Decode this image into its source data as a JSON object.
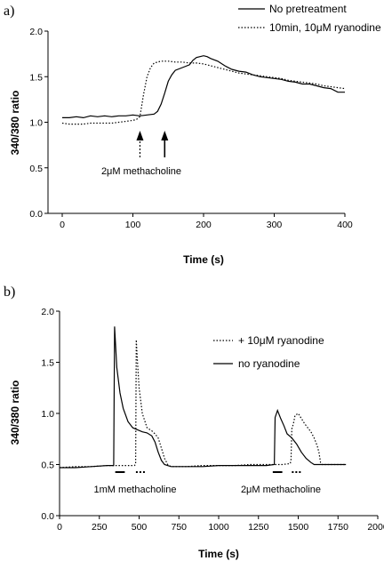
{
  "chart_data": [
    {
      "panel": "a)",
      "type": "line",
      "xlabel": "Time (s)",
      "ylabel": "340/380 ratio",
      "xlim": [
        0,
        400
      ],
      "ylim": [
        0.0,
        2.0
      ],
      "xticks": [
        "0",
        "100",
        "200",
        "300",
        "400"
      ],
      "yticks": [
        "0.0",
        "0.5",
        "1.0",
        "1.5",
        "2.0"
      ],
      "grid": false,
      "legend_position": "top-right",
      "series": [
        {
          "name": "No pretreatment",
          "style": "solid",
          "color": "#000000",
          "points": [
            [
              0,
              1.05
            ],
            [
              10,
              1.05
            ],
            [
              20,
              1.06
            ],
            [
              30,
              1.05
            ],
            [
              40,
              1.07
            ],
            [
              50,
              1.06
            ],
            [
              60,
              1.07
            ],
            [
              70,
              1.06
            ],
            [
              80,
              1.07
            ],
            [
              90,
              1.07
            ],
            [
              100,
              1.08
            ],
            [
              110,
              1.07
            ],
            [
              120,
              1.08
            ],
            [
              130,
              1.09
            ],
            [
              135,
              1.12
            ],
            [
              140,
              1.2
            ],
            [
              145,
              1.32
            ],
            [
              150,
              1.45
            ],
            [
              155,
              1.52
            ],
            [
              160,
              1.57
            ],
            [
              170,
              1.6
            ],
            [
              180,
              1.63
            ],
            [
              185,
              1.68
            ],
            [
              190,
              1.71
            ],
            [
              195,
              1.72
            ],
            [
              200,
              1.73
            ],
            [
              205,
              1.72
            ],
            [
              210,
              1.7
            ],
            [
              220,
              1.67
            ],
            [
              230,
              1.62
            ],
            [
              240,
              1.58
            ],
            [
              250,
              1.56
            ],
            [
              260,
              1.55
            ],
            [
              270,
              1.52
            ],
            [
              280,
              1.5
            ],
            [
              290,
              1.49
            ],
            [
              300,
              1.48
            ],
            [
              310,
              1.47
            ],
            [
              320,
              1.45
            ],
            [
              330,
              1.44
            ],
            [
              340,
              1.42
            ],
            [
              350,
              1.42
            ],
            [
              360,
              1.4
            ],
            [
              370,
              1.38
            ],
            [
              380,
              1.37
            ],
            [
              390,
              1.33
            ],
            [
              400,
              1.33
            ]
          ]
        },
        {
          "name": "10min, 10μM ryanodine",
          "style": "dotted",
          "color": "#000000",
          "points": [
            [
              0,
              0.99
            ],
            [
              10,
              0.98
            ],
            [
              20,
              0.98
            ],
            [
              30,
              0.98
            ],
            [
              40,
              0.99
            ],
            [
              50,
              0.99
            ],
            [
              60,
              0.99
            ],
            [
              70,
              0.99
            ],
            [
              80,
              1.0
            ],
            [
              90,
              1.01
            ],
            [
              100,
              1.02
            ],
            [
              105,
              1.03
            ],
            [
              110,
              1.06
            ],
            [
              115,
              1.3
            ],
            [
              120,
              1.5
            ],
            [
              125,
              1.6
            ],
            [
              130,
              1.65
            ],
            [
              135,
              1.66
            ],
            [
              140,
              1.67
            ],
            [
              150,
              1.67
            ],
            [
              160,
              1.66
            ],
            [
              170,
              1.66
            ],
            [
              180,
              1.65
            ],
            [
              190,
              1.65
            ],
            [
              200,
              1.64
            ],
            [
              210,
              1.62
            ],
            [
              220,
              1.6
            ],
            [
              230,
              1.58
            ],
            [
              240,
              1.56
            ],
            [
              250,
              1.54
            ],
            [
              260,
              1.53
            ],
            [
              270,
              1.52
            ],
            [
              280,
              1.51
            ],
            [
              290,
              1.5
            ],
            [
              300,
              1.49
            ],
            [
              310,
              1.48
            ],
            [
              320,
              1.46
            ],
            [
              330,
              1.45
            ],
            [
              340,
              1.44
            ],
            [
              350,
              1.43
            ],
            [
              360,
              1.42
            ],
            [
              370,
              1.4
            ],
            [
              380,
              1.39
            ],
            [
              390,
              1.38
            ],
            [
              400,
              1.37
            ]
          ]
        }
      ],
      "annotations": [
        {
          "text": "2μM methacholine",
          "arrows": [
            {
              "x": 110,
              "style": "dashed"
            },
            {
              "x": 145,
              "style": "solid"
            }
          ]
        }
      ]
    },
    {
      "panel": "b)",
      "type": "line",
      "xlabel": "Time (s)",
      "ylabel": "340/380 ratio",
      "xlim": [
        0,
        2000
      ],
      "ylim": [
        0.0,
        2.0
      ],
      "xticks": [
        "0",
        "250",
        "500",
        "750",
        "1000",
        "1250",
        "1500",
        "1750",
        "2000"
      ],
      "yticks": [
        "0.0",
        "0.5",
        "1.0",
        "1.5",
        "2.0"
      ],
      "grid": false,
      "legend_position": "top-right",
      "series": [
        {
          "name": "+ 10μM ryanodine",
          "style": "dotted",
          "color": "#000000",
          "points": [
            [
              0,
              0.47
            ],
            [
              100,
              0.48
            ],
            [
              200,
              0.48
            ],
            [
              300,
              0.49
            ],
            [
              400,
              0.49
            ],
            [
              470,
              0.49
            ],
            [
              478,
              0.5
            ],
            [
              482,
              1.72
            ],
            [
              490,
              1.5
            ],
            [
              500,
              1.25
            ],
            [
              520,
              1.0
            ],
            [
              550,
              0.86
            ],
            [
              580,
              0.83
            ],
            [
              600,
              0.8
            ],
            [
              620,
              0.76
            ],
            [
              640,
              0.66
            ],
            [
              660,
              0.56
            ],
            [
              680,
              0.5
            ],
            [
              700,
              0.48
            ],
            [
              800,
              0.48
            ],
            [
              900,
              0.49
            ],
            [
              1000,
              0.49
            ],
            [
              1100,
              0.49
            ],
            [
              1200,
              0.5
            ],
            [
              1300,
              0.5
            ],
            [
              1400,
              0.5
            ],
            [
              1450,
              0.51
            ],
            [
              1455,
              0.55
            ],
            [
              1460,
              0.85
            ],
            [
              1470,
              0.9
            ],
            [
              1480,
              0.98
            ],
            [
              1500,
              1.0
            ],
            [
              1520,
              0.95
            ],
            [
              1540,
              0.9
            ],
            [
              1560,
              0.86
            ],
            [
              1580,
              0.82
            ],
            [
              1600,
              0.76
            ],
            [
              1620,
              0.68
            ],
            [
              1630,
              0.62
            ],
            [
              1640,
              0.52
            ],
            [
              1650,
              0.5
            ],
            [
              1700,
              0.5
            ],
            [
              1800,
              0.5
            ]
          ]
        },
        {
          "name": "no ryanodine",
          "style": "solid",
          "color": "#000000",
          "points": [
            [
              0,
              0.47
            ],
            [
              100,
              0.47
            ],
            [
              200,
              0.48
            ],
            [
              300,
              0.49
            ],
            [
              340,
              0.49
            ],
            [
              346,
              1.85
            ],
            [
              360,
              1.45
            ],
            [
              380,
              1.2
            ],
            [
              400,
              1.05
            ],
            [
              430,
              0.92
            ],
            [
              460,
              0.86
            ],
            [
              490,
              0.84
            ],
            [
              520,
              0.82
            ],
            [
              550,
              0.81
            ],
            [
              580,
              0.78
            ],
            [
              600,
              0.72
            ],
            [
              620,
              0.62
            ],
            [
              640,
              0.54
            ],
            [
              660,
              0.5
            ],
            [
              700,
              0.48
            ],
            [
              800,
              0.48
            ],
            [
              900,
              0.48
            ],
            [
              1000,
              0.49
            ],
            [
              1100,
              0.49
            ],
            [
              1200,
              0.49
            ],
            [
              1300,
              0.49
            ],
            [
              1350,
              0.5
            ],
            [
              1355,
              0.96
            ],
            [
              1370,
              1.03
            ],
            [
              1390,
              0.95
            ],
            [
              1410,
              0.88
            ],
            [
              1430,
              0.8
            ],
            [
              1460,
              0.76
            ],
            [
              1490,
              0.7
            ],
            [
              1520,
              0.62
            ],
            [
              1550,
              0.56
            ],
            [
              1580,
              0.52
            ],
            [
              1600,
              0.5
            ],
            [
              1700,
              0.5
            ],
            [
              1800,
              0.5
            ]
          ]
        }
      ],
      "annotations": [
        {
          "text": "1mM methacholine",
          "bars": [
            [
              350,
              410,
              "solid"
            ],
            [
              480,
              540,
              "dotted"
            ]
          ]
        },
        {
          "text": "2μM methacholine",
          "bars": [
            [
              1340,
              1400,
              "solid"
            ],
            [
              1460,
              1520,
              "dotted"
            ]
          ]
        }
      ]
    }
  ]
}
